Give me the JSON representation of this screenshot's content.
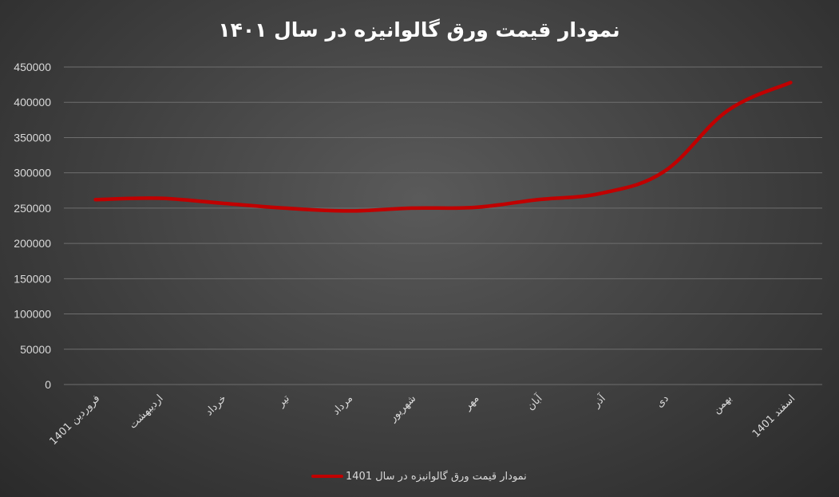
{
  "chart_data": {
    "type": "line",
    "title": "نمودار قیمت ورق گالوانیزه در سال ۱۴۰۱",
    "xlabel": "",
    "ylabel": "",
    "categories": [
      "فروردین 1401",
      "اردیبهشت",
      "خرداد",
      "تیر",
      "مرداد",
      "شهریور",
      "مهر",
      "آبان",
      "آذر",
      "دی",
      "بهمن",
      "اسفند 1401"
    ],
    "series": [
      {
        "name": "نمودار قیمت ورق گالوانیزه در سال 1401",
        "values": [
          262000,
          264000,
          257000,
          250000,
          246000,
          250000,
          251000,
          262000,
          271000,
          302000,
          388000,
          428000
        ],
        "color": "#c00000"
      }
    ],
    "ylim": [
      0,
      450000
    ],
    "yticks": [
      "0",
      "50000",
      "100000",
      "150000",
      "200000",
      "250000",
      "300000",
      "350000",
      "400000",
      "450000"
    ],
    "grid": true,
    "legend": "bottom"
  }
}
